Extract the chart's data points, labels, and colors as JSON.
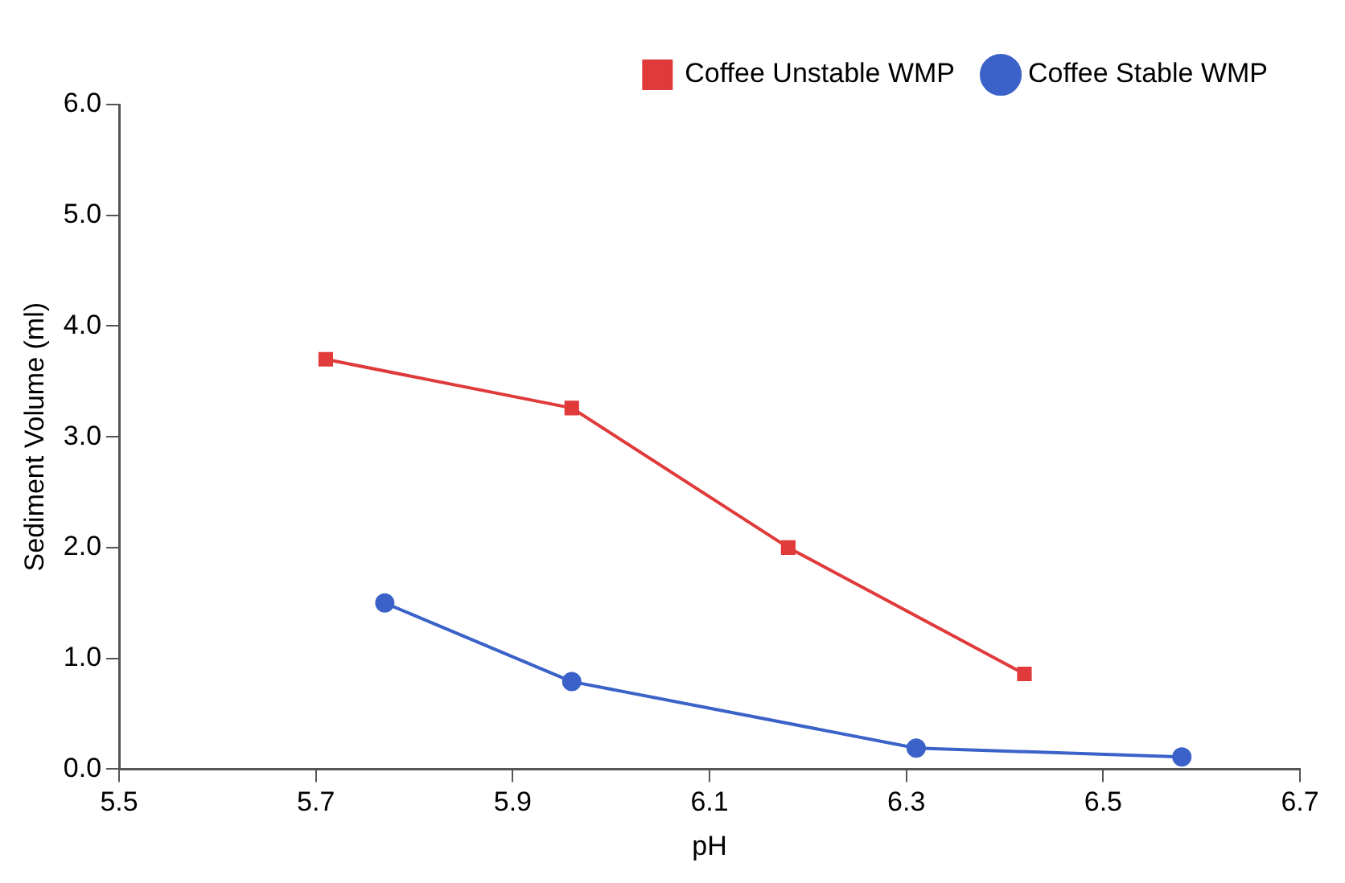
{
  "chart_data": {
    "type": "line",
    "xlabel": "pH",
    "ylabel": "Sediment Volume (ml)",
    "xlim": [
      5.5,
      6.7
    ],
    "xticks": [
      5.5,
      5.7,
      5.9,
      6.1,
      6.3,
      6.5,
      6.7
    ],
    "ylim": [
      0,
      6
    ],
    "yticks": [
      {
        "value": 0,
        "label": "0.0"
      },
      {
        "value": 1,
        "label": "1.0"
      },
      {
        "value": 2,
        "label": "2.0"
      },
      {
        "value": 3,
        "label": "3.0"
      },
      {
        "value": 4,
        "label": "4.0"
      },
      {
        "value": 5,
        "label": "5.0"
      },
      {
        "value": 6,
        "label": "6.0"
      }
    ],
    "grid": false,
    "legend": "top right",
    "series": [
      {
        "name": "Coffee Unstable WMP",
        "color": "#e03a3a",
        "marker": "square",
        "x": [
          5.71,
          5.96,
          6.18,
          6.42
        ],
        "values": [
          3.7,
          3.26,
          2.0,
          0.86
        ]
      },
      {
        "name": "Coffee Stable WMP",
        "color": "#3a62c8",
        "marker": "circle",
        "x": [
          5.77,
          5.96,
          6.31,
          6.58
        ],
        "values": [
          1.5,
          0.79,
          0.19,
          0.11
        ]
      }
    ]
  }
}
